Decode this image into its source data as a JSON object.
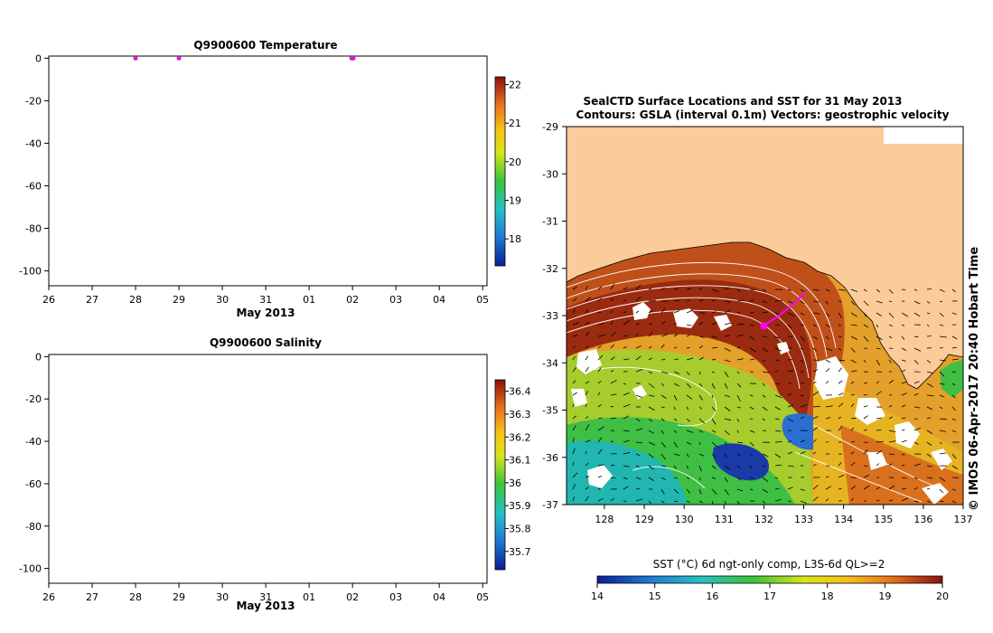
{
  "colors": {
    "land": "#fbcb9a",
    "white": "#ffffff",
    "contour": "#ffffff",
    "vector": "#000000",
    "track": "#ff00ff",
    "coast": "#000000"
  },
  "chart_data": [
    {
      "type": "scatter",
      "id": "temperature_profile",
      "title": "Q9900600  Temperature",
      "xlabel": "May 2013",
      "x_tick_labels": [
        "26",
        "27",
        "28",
        "29",
        "30",
        "31",
        "01",
        "02",
        "03",
        "04",
        "05"
      ],
      "x_tick_values": [
        0,
        1,
        2,
        3,
        4,
        5,
        6,
        7,
        8,
        9,
        10
      ],
      "xlim": [
        0,
        10.1
      ],
      "ylim": [
        -107,
        1
      ],
      "y_ticks": [
        0,
        -20,
        -40,
        -60,
        -80,
        -100
      ],
      "points": [
        {
          "x": 2.0,
          "y": 0,
          "value": 21.0
        },
        {
          "x": 3.0,
          "y": 0,
          "value": 21.0
        },
        {
          "x": 6.98,
          "y": 0,
          "value": 21.0
        },
        {
          "x": 7.0,
          "y": 0,
          "value": 21.0
        },
        {
          "x": 7.02,
          "y": 0,
          "value": 21.0
        }
      ],
      "colorbar": {
        "ticks": [
          22,
          21,
          20,
          19,
          18
        ],
        "range": [
          17.3,
          22.2
        ]
      }
    },
    {
      "type": "scatter",
      "id": "salinity_profile",
      "title": "Q9900600  Salinity",
      "xlabel": "May 2013",
      "x_tick_labels": [
        "26",
        "27",
        "28",
        "29",
        "30",
        "31",
        "01",
        "02",
        "03",
        "04",
        "05"
      ],
      "x_tick_values": [
        0,
        1,
        2,
        3,
        4,
        5,
        6,
        7,
        8,
        9,
        10
      ],
      "xlim": [
        0,
        10.1
      ],
      "ylim": [
        -107,
        1
      ],
      "y_ticks": [
        0,
        -20,
        -40,
        -60,
        -80,
        -100
      ],
      "points": [],
      "colorbar": {
        "ticks": [
          36.4,
          36.3,
          36.2,
          36.1,
          36,
          35.9,
          35.8,
          35.7
        ],
        "range": [
          35.62,
          36.45
        ]
      }
    },
    {
      "type": "heatmap",
      "id": "sst_map",
      "title_line1": "SealCTD Surface Locations and SST for 31 May 2013",
      "title_line2": "Contours: GSLA (interval 0.1m) Vectors: geostrophic velocity",
      "x_tick_labels": [
        "128",
        "129",
        "130",
        "131",
        "132",
        "133",
        "134",
        "135",
        "136",
        "137"
      ],
      "x_tick_values": [
        128,
        129,
        130,
        131,
        132,
        133,
        134,
        135,
        136,
        137
      ],
      "y_tick_labels": [
        "-29",
        "-30",
        "-31",
        "-32",
        "-33",
        "-34",
        "-35",
        "-36",
        "-37"
      ],
      "y_tick_values": [
        -29,
        -30,
        -31,
        -32,
        -33,
        -34,
        -35,
        -36,
        -37
      ],
      "xlim": [
        127.05,
        137.0
      ],
      "ylim": [
        -37.0,
        -29.0
      ],
      "colorbar": {
        "label": "SST (°C) 6d ngt-only comp, L3S-6d QL>=2",
        "ticks": [
          "14",
          "15",
          "16",
          "17",
          "18",
          "19",
          "20"
        ],
        "range": [
          14,
          20
        ]
      },
      "track": {
        "lon": [
          132.0,
          132.15,
          132.3,
          132.45,
          132.6,
          132.75,
          132.9,
          133.05
        ],
        "lat": [
          -33.22,
          -33.12,
          -33.05,
          -32.95,
          -32.85,
          -32.75,
          -32.62,
          -32.52
        ]
      },
      "stamp": "© IMOS 06-Apr-2017 20:40 Hobart Time"
    }
  ]
}
